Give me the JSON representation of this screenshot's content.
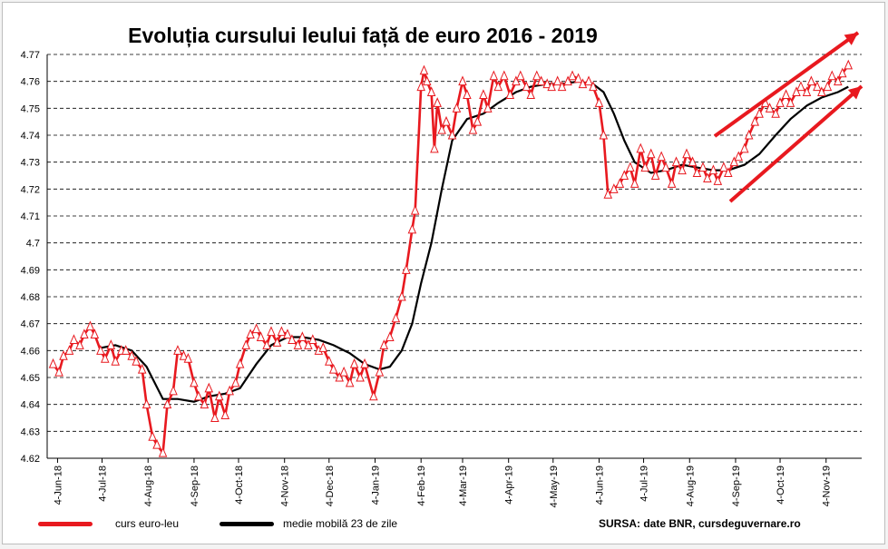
{
  "chart_data": {
    "type": "line",
    "title": "Evoluția cursului leului față de euro 2016 - 2019",
    "xlabel": "",
    "ylabel": "",
    "ylim": [
      4.62,
      4.77
    ],
    "yticks": [
      "4.62",
      "4.63",
      "4.64",
      "4.65",
      "4.66",
      "4.67",
      "4.68",
      "4.69",
      "4.7",
      "4.71",
      "4.72",
      "4.73",
      "4.74",
      "4.75",
      "4.76",
      "4.77"
    ],
    "xticks": [
      "4-Jun-18",
      "4-Jul-18",
      "4-Aug-18",
      "4-Sep-18",
      "4-Oct-18",
      "4-Nov-18",
      "4-Dec-18",
      "4-Jan-19",
      "4-Feb-19",
      "4-Mar-19",
      "4-Apr-19",
      "4-May-19",
      "4-Jun-19",
      "4-Jul-19",
      "4-Aug-19",
      "4-Sep-19",
      "4-Oct-19",
      "4-Nov-19"
    ],
    "grid": "horizontal dashed",
    "legend_position": "bottom",
    "colors": {
      "rate": "#e8191f",
      "moving_average": "#000000",
      "trend_arrow": "#e8191f"
    },
    "series": [
      {
        "name": "curs euro-leu",
        "points": [
          [
            "2018-06-01",
            4.655
          ],
          [
            "2018-06-05",
            4.652
          ],
          [
            "2018-06-08",
            4.658
          ],
          [
            "2018-06-12",
            4.66
          ],
          [
            "2018-06-15",
            4.664
          ],
          [
            "2018-06-19",
            4.662
          ],
          [
            "2018-06-22",
            4.666
          ],
          [
            "2018-06-26",
            4.669
          ],
          [
            "2018-06-29",
            4.666
          ],
          [
            "2018-07-03",
            4.66
          ],
          [
            "2018-07-06",
            4.657
          ],
          [
            "2018-07-10",
            4.662
          ],
          [
            "2018-07-13",
            4.656
          ],
          [
            "2018-07-17",
            4.66
          ],
          [
            "2018-07-20",
            4.66
          ],
          [
            "2018-07-24",
            4.658
          ],
          [
            "2018-07-27",
            4.656
          ],
          [
            "2018-07-31",
            4.653
          ],
          [
            "2018-08-03",
            4.64
          ],
          [
            "2018-08-07",
            4.628
          ],
          [
            "2018-08-10",
            4.625
          ],
          [
            "2018-08-14",
            4.622
          ],
          [
            "2018-08-17",
            4.64
          ],
          [
            "2018-08-21",
            4.645
          ],
          [
            "2018-08-24",
            4.66
          ],
          [
            "2018-08-28",
            4.658
          ],
          [
            "2018-08-31",
            4.657
          ],
          [
            "2018-09-04",
            4.648
          ],
          [
            "2018-09-07",
            4.643
          ],
          [
            "2018-09-11",
            4.64
          ],
          [
            "2018-09-14",
            4.646
          ],
          [
            "2018-09-18",
            4.635
          ],
          [
            "2018-09-21",
            4.643
          ],
          [
            "2018-09-25",
            4.636
          ],
          [
            "2018-09-28",
            4.645
          ],
          [
            "2018-10-02",
            4.648
          ],
          [
            "2018-10-05",
            4.655
          ],
          [
            "2018-10-09",
            4.662
          ],
          [
            "2018-10-12",
            4.666
          ],
          [
            "2018-10-16",
            4.668
          ],
          [
            "2018-10-19",
            4.665
          ],
          [
            "2018-10-23",
            4.662
          ],
          [
            "2018-10-26",
            4.667
          ],
          [
            "2018-10-30",
            4.663
          ],
          [
            "2018-11-02",
            4.667
          ],
          [
            "2018-11-06",
            4.666
          ],
          [
            "2018-11-09",
            4.664
          ],
          [
            "2018-11-13",
            4.662
          ],
          [
            "2018-11-16",
            4.665
          ],
          [
            "2018-11-20",
            4.662
          ],
          [
            "2018-11-23",
            4.664
          ],
          [
            "2018-11-27",
            4.66
          ],
          [
            "2018-11-30",
            4.661
          ],
          [
            "2018-12-04",
            4.656
          ],
          [
            "2018-12-07",
            4.653
          ],
          [
            "2018-12-11",
            4.65
          ],
          [
            "2018-12-14",
            4.652
          ],
          [
            "2018-12-18",
            4.648
          ],
          [
            "2018-12-21",
            4.655
          ],
          [
            "2018-12-25",
            4.65
          ],
          [
            "2018-12-28",
            4.655
          ],
          [
            "2019-01-03",
            4.643
          ],
          [
            "2019-01-07",
            4.652
          ],
          [
            "2019-01-10",
            4.662
          ],
          [
            "2019-01-14",
            4.665
          ],
          [
            "2019-01-18",
            4.672
          ],
          [
            "2019-01-22",
            4.68
          ],
          [
            "2019-01-25",
            4.69
          ],
          [
            "2019-01-29",
            4.705
          ],
          [
            "2019-01-31",
            4.712
          ],
          [
            "2019-02-04",
            4.758
          ],
          [
            "2019-02-06",
            4.764
          ],
          [
            "2019-02-08",
            4.76
          ],
          [
            "2019-02-11",
            4.756
          ],
          [
            "2019-02-13",
            4.735
          ],
          [
            "2019-02-15",
            4.752
          ],
          [
            "2019-02-18",
            4.742
          ],
          [
            "2019-02-21",
            4.745
          ],
          [
            "2019-02-25",
            4.74
          ],
          [
            "2019-02-28",
            4.75
          ],
          [
            "2019-03-04",
            4.76
          ],
          [
            "2019-03-07",
            4.755
          ],
          [
            "2019-03-11",
            4.742
          ],
          [
            "2019-03-14",
            4.745
          ],
          [
            "2019-03-18",
            4.755
          ],
          [
            "2019-03-21",
            4.75
          ],
          [
            "2019-03-25",
            4.762
          ],
          [
            "2019-03-28",
            4.758
          ],
          [
            "2019-04-01",
            4.762
          ],
          [
            "2019-04-05",
            4.755
          ],
          [
            "2019-04-09",
            4.76
          ],
          [
            "2019-04-12",
            4.762
          ],
          [
            "2019-04-16",
            4.758
          ],
          [
            "2019-04-19",
            4.755
          ],
          [
            "2019-04-23",
            4.762
          ],
          [
            "2019-04-26",
            4.76
          ],
          [
            "2019-04-30",
            4.759
          ],
          [
            "2019-05-03",
            4.758
          ],
          [
            "2019-05-07",
            4.76
          ],
          [
            "2019-05-10",
            4.758
          ],
          [
            "2019-05-14",
            4.76
          ],
          [
            "2019-05-17",
            4.762
          ],
          [
            "2019-05-21",
            4.761
          ],
          [
            "2019-05-24",
            4.759
          ],
          [
            "2019-05-28",
            4.76
          ],
          [
            "2019-05-31",
            4.758
          ],
          [
            "2019-06-04",
            4.752
          ],
          [
            "2019-06-07",
            4.74
          ],
          [
            "2019-06-10",
            4.718
          ],
          [
            "2019-06-14",
            4.72
          ],
          [
            "2019-06-18",
            4.722
          ],
          [
            "2019-06-21",
            4.725
          ],
          [
            "2019-06-25",
            4.728
          ],
          [
            "2019-06-28",
            4.722
          ],
          [
            "2019-07-02",
            4.735
          ],
          [
            "2019-07-05",
            4.728
          ],
          [
            "2019-07-09",
            4.733
          ],
          [
            "2019-07-12",
            4.725
          ],
          [
            "2019-07-16",
            4.732
          ],
          [
            "2019-07-19",
            4.728
          ],
          [
            "2019-07-23",
            4.722
          ],
          [
            "2019-07-26",
            4.73
          ],
          [
            "2019-07-30",
            4.727
          ],
          [
            "2019-08-02",
            4.733
          ],
          [
            "2019-08-06",
            4.73
          ],
          [
            "2019-08-09",
            4.726
          ],
          [
            "2019-08-13",
            4.728
          ],
          [
            "2019-08-16",
            4.724
          ],
          [
            "2019-08-20",
            4.727
          ],
          [
            "2019-08-23",
            4.723
          ],
          [
            "2019-08-27",
            4.728
          ],
          [
            "2019-08-30",
            4.726
          ],
          [
            "2019-09-03",
            4.73
          ],
          [
            "2019-09-06",
            4.732
          ],
          [
            "2019-09-10",
            4.735
          ],
          [
            "2019-09-13",
            4.74
          ],
          [
            "2019-09-17",
            4.745
          ],
          [
            "2019-09-20",
            4.748
          ],
          [
            "2019-09-24",
            4.752
          ],
          [
            "2019-09-27",
            4.75
          ],
          [
            "2019-10-01",
            4.748
          ],
          [
            "2019-10-04",
            4.752
          ],
          [
            "2019-10-08",
            4.755
          ],
          [
            "2019-10-11",
            4.752
          ],
          [
            "2019-10-15",
            4.756
          ],
          [
            "2019-10-18",
            4.758
          ],
          [
            "2019-10-22",
            4.756
          ],
          [
            "2019-10-25",
            4.76
          ],
          [
            "2019-10-29",
            4.758
          ],
          [
            "2019-11-01",
            4.756
          ],
          [
            "2019-11-05",
            4.758
          ],
          [
            "2019-11-08",
            4.762
          ],
          [
            "2019-11-12",
            4.76
          ],
          [
            "2019-11-15",
            4.763
          ],
          [
            "2019-11-19",
            4.766
          ]
        ]
      },
      {
        "name": "medie mobilă 23 de zile",
        "points": [
          [
            "2018-07-03",
            4.661
          ],
          [
            "2018-07-13",
            4.662
          ],
          [
            "2018-07-24",
            4.66
          ],
          [
            "2018-08-03",
            4.654
          ],
          [
            "2018-08-14",
            4.642
          ],
          [
            "2018-08-24",
            4.642
          ],
          [
            "2018-09-04",
            4.641
          ],
          [
            "2018-09-14",
            4.643
          ],
          [
            "2018-09-25",
            4.644
          ],
          [
            "2018-10-05",
            4.646
          ],
          [
            "2018-10-16",
            4.655
          ],
          [
            "2018-10-26",
            4.662
          ],
          [
            "2018-11-06",
            4.665
          ],
          [
            "2018-11-16",
            4.665
          ],
          [
            "2018-11-27",
            4.664
          ],
          [
            "2018-12-07",
            4.662
          ],
          [
            "2018-12-18",
            4.659
          ],
          [
            "2018-12-28",
            4.655
          ],
          [
            "2019-01-07",
            4.653
          ],
          [
            "2019-01-14",
            4.654
          ],
          [
            "2019-01-22",
            4.66
          ],
          [
            "2019-01-29",
            4.67
          ],
          [
            "2019-02-04",
            4.685
          ],
          [
            "2019-02-11",
            4.7
          ],
          [
            "2019-02-18",
            4.72
          ],
          [
            "2019-02-25",
            4.738
          ],
          [
            "2019-03-07",
            4.746
          ],
          [
            "2019-03-18",
            4.748
          ],
          [
            "2019-03-28",
            4.752
          ],
          [
            "2019-04-09",
            4.756
          ],
          [
            "2019-04-19",
            4.758
          ],
          [
            "2019-04-30",
            4.759
          ],
          [
            "2019-05-10",
            4.759
          ],
          [
            "2019-05-21",
            4.76
          ],
          [
            "2019-05-31",
            4.759
          ],
          [
            "2019-06-07",
            4.756
          ],
          [
            "2019-06-14",
            4.748
          ],
          [
            "2019-06-21",
            4.738
          ],
          [
            "2019-06-28",
            4.73
          ],
          [
            "2019-07-09",
            4.726
          ],
          [
            "2019-07-19",
            4.727
          ],
          [
            "2019-07-30",
            4.729
          ],
          [
            "2019-08-09",
            4.728
          ],
          [
            "2019-08-20",
            4.727
          ],
          [
            "2019-08-30",
            4.727
          ],
          [
            "2019-09-10",
            4.729
          ],
          [
            "2019-09-20",
            4.733
          ],
          [
            "2019-10-01",
            4.74
          ],
          [
            "2019-10-11",
            4.746
          ],
          [
            "2019-10-22",
            4.751
          ],
          [
            "2019-11-01",
            4.754
          ],
          [
            "2019-11-12",
            4.756
          ],
          [
            "2019-11-19",
            4.758
          ]
        ]
      }
    ],
    "legend": [
      "curs euro-leu",
      "medie mobilă 23 de zile"
    ],
    "source": "SURSA: date BNR, cursdeguvernare.ro"
  }
}
